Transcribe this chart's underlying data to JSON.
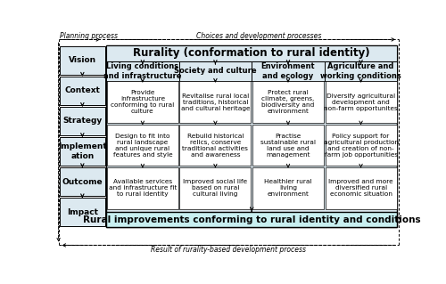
{
  "title_top_left": "Planning process",
  "title_top_right": "Choices and development processes",
  "title_bottom": "Result of rurality-based development process",
  "main_header": "Rurality (conformation to rural identity)",
  "bottom_box": "Rural improvements conforming to rural identity and conditions",
  "left_col_items": [
    "Vision",
    "Context",
    "Strategy",
    "Implement\nation",
    "Outcome",
    "Impact"
  ],
  "col_headers": [
    "Living conditions\nand infrastructure",
    "Society and culture",
    "Environment\nand ecology",
    "Agriculture and\nworking conditions"
  ],
  "row1_cells": [
    "Provide\ninfrastructure\nconforming to rural\nculture",
    "Revitalise rural local\ntraditions, historical\nand cultural heritage",
    "Protect rural\nclimate, greens,\nbiodiversity and\nenvironment",
    "Diversify agricultural\ndevelopment and\nnon-farm opportunites"
  ],
  "row2_cells": [
    "Design to fit into\nrural landscape\nand unique rural\nfeatures and style",
    "Rebuild historical\nrelics, conserve\ntraditional activities\nand awareness",
    "Practise\nsustainable rural\nland use and\nmanagement",
    "Policy support for\nagricultural production\nand creation of non-\nfarm job opportunities"
  ],
  "row3_cells": [
    "Available services\nand infrastructure fit\nto rural identity",
    "Improved social life\nbased on rural\ncultural living",
    "Healthier rural\nliving\nenvironment",
    "Improved and more\ndiversified rural\neconomic situation"
  ],
  "bg_light": "#dce9f0",
  "bg_white": "#ffffff",
  "bg_cyan": "#c8eff0",
  "border_color": "#000000",
  "text_color": "#000000"
}
